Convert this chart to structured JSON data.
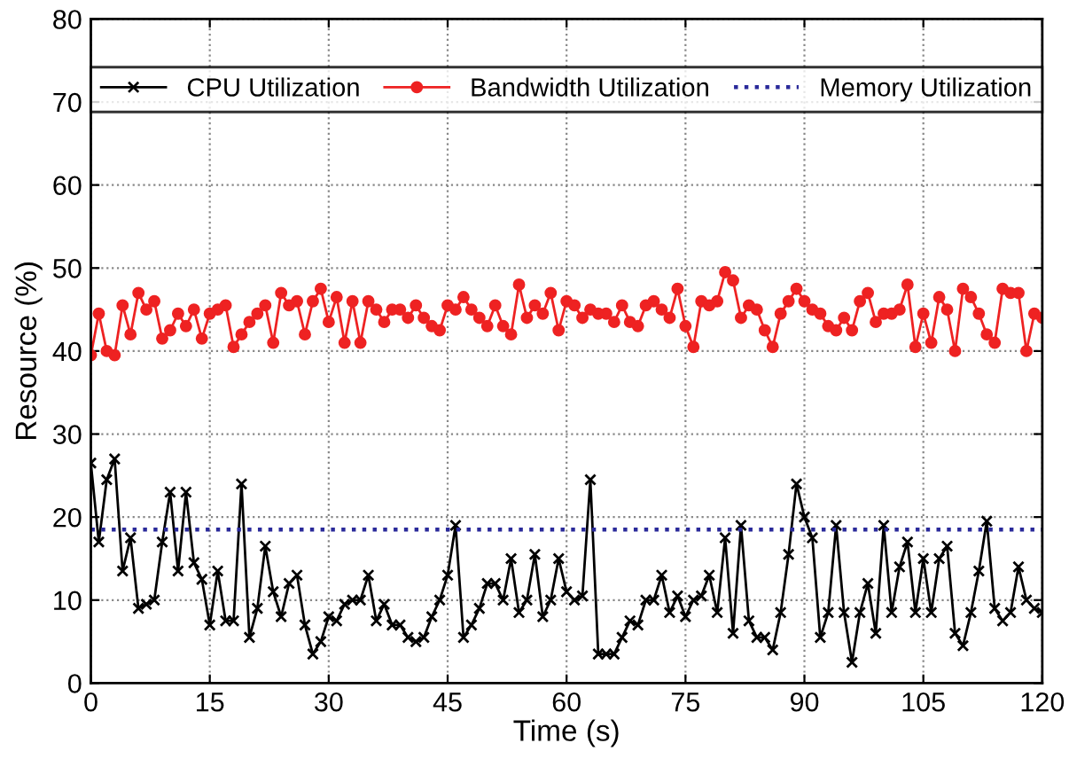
{
  "chart_data": {
    "type": "line",
    "xlabel": "Time (s)",
    "ylabel": "Resource (%)",
    "x": [
      0,
      1,
      2,
      3,
      4,
      5,
      6,
      7,
      8,
      9,
      10,
      11,
      12,
      13,
      14,
      15,
      16,
      17,
      18,
      19,
      20,
      21,
      22,
      23,
      24,
      25,
      26,
      27,
      28,
      29,
      30,
      31,
      32,
      33,
      34,
      35,
      36,
      37,
      38,
      39,
      40,
      41,
      42,
      43,
      44,
      45,
      46,
      47,
      48,
      49,
      50,
      51,
      52,
      53,
      54,
      55,
      56,
      57,
      58,
      59,
      60,
      61,
      62,
      63,
      64,
      65,
      66,
      67,
      68,
      69,
      70,
      71,
      72,
      73,
      74,
      75,
      76,
      77,
      78,
      79,
      80,
      81,
      82,
      83,
      84,
      85,
      86,
      87,
      88,
      89,
      90,
      91,
      92,
      93,
      94,
      95,
      96,
      97,
      98,
      99,
      100,
      101,
      102,
      103,
      104,
      105,
      106,
      107,
      108,
      109,
      110,
      111,
      112,
      113,
      114,
      115,
      116,
      117,
      118,
      119,
      120
    ],
    "series": [
      {
        "name": "CPU Utilization",
        "color": "#000000",
        "marker": "cross",
        "values": [
          26.5,
          17,
          24.5,
          27,
          13.5,
          17.5,
          9,
          9.5,
          10,
          17,
          23,
          13.5,
          23,
          14.5,
          12.5,
          7,
          13.5,
          7.5,
          7.5,
          24,
          5.5,
          9,
          16.5,
          11,
          8,
          12,
          13,
          7,
          3.5,
          5,
          8,
          7.5,
          9.5,
          10,
          10,
          13,
          7.5,
          9.5,
          7,
          7,
          5.5,
          5,
          5.5,
          8,
          10,
          13,
          19,
          5.5,
          7,
          9,
          12,
          12,
          10,
          15,
          8.5,
          10,
          15.5,
          8,
          10,
          15,
          11,
          10,
          10.5,
          24.5,
          3.5,
          3.5,
          3.5,
          5.5,
          7.5,
          7,
          10,
          10,
          13,
          8.5,
          10.5,
          8,
          10,
          10.5,
          13,
          8.5,
          17.5,
          6,
          19,
          7.5,
          5.5,
          5.5,
          4,
          8.5,
          15.5,
          24,
          20,
          17.5,
          5.5,
          8.5,
          19,
          8.5,
          2.5,
          8.5,
          12,
          6,
          19,
          8.5,
          14,
          17,
          8.5,
          15,
          8.5,
          15,
          16.5,
          6,
          4.5,
          8.5,
          13.5,
          19.5,
          9,
          7.5,
          8.5,
          14,
          10,
          9,
          8.5
        ]
      },
      {
        "name": "Bandwidth Utilization",
        "color": "#ee2222",
        "marker": "circle",
        "values": [
          39.5,
          44.5,
          40,
          39.5,
          45.5,
          42,
          47,
          45,
          46,
          41.5,
          42.5,
          44.5,
          43,
          45,
          41.5,
          44.5,
          45,
          45.5,
          40.5,
          42,
          43.5,
          44.5,
          45.5,
          41,
          47,
          45.5,
          46,
          42,
          46,
          47.5,
          43.5,
          46.5,
          41,
          46,
          41,
          46,
          45,
          43.5,
          45,
          45,
          44,
          45.5,
          44,
          43,
          42.5,
          45.5,
          45,
          46.5,
          45,
          44,
          43,
          45.5,
          43,
          42,
          48,
          44,
          45.5,
          44.5,
          47,
          42.5,
          46,
          45.5,
          44,
          45,
          44.5,
          44.5,
          43.5,
          45.5,
          43.5,
          43,
          45.5,
          46,
          45,
          44,
          47.5,
          43,
          40.5,
          46,
          45.5,
          46,
          49.5,
          48.5,
          44,
          45.5,
          45,
          42.5,
          40.5,
          44.5,
          46,
          47.5,
          46,
          45,
          44.5,
          43,
          42.5,
          44,
          42.5,
          46,
          47,
          43.5,
          44.5,
          44.5,
          45,
          48,
          40.5,
          44.5,
          41,
          46.5,
          45,
          40,
          47.5,
          46.5,
          44.5,
          42,
          41,
          47.5,
          47,
          47,
          40,
          44.5,
          44
        ]
      },
      {
        "name": "Memory Utilization",
        "color": "#2a2a9a",
        "marker": "none",
        "line_style": "dotted",
        "x": [
          0,
          120
        ],
        "values": [
          18.5,
          18.5
        ]
      }
    ],
    "xlim": [
      0,
      120
    ],
    "xticks": [
      0,
      15,
      30,
      45,
      60,
      75,
      90,
      105,
      120
    ],
    "ylim": [
      0,
      80
    ],
    "yticks": [
      0,
      10,
      20,
      30,
      40,
      50,
      60,
      70,
      80
    ],
    "grid": true,
    "legend": "top"
  }
}
